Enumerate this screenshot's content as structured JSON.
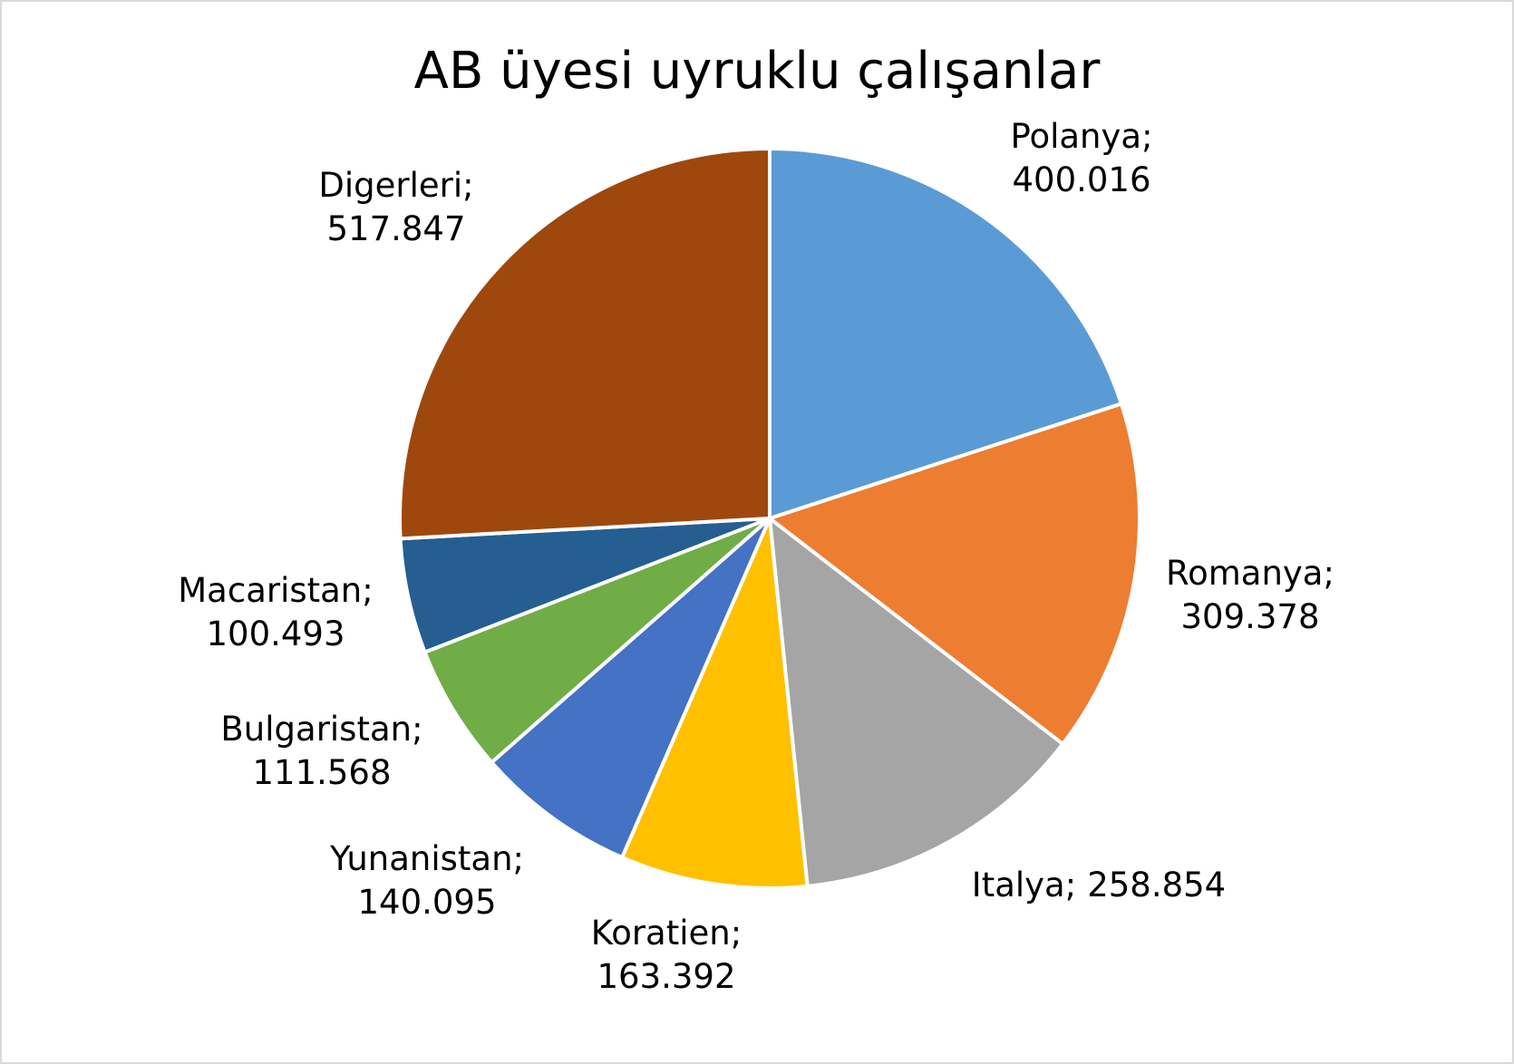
{
  "chart_data": {
    "type": "pie",
    "title": "AB üyesi uyruklu çalışanlar",
    "categories": [
      "Polanya",
      "Romanya",
      "Italya",
      "Koratien",
      "Yunanistan",
      "Bulgaristan",
      "Macaristan",
      "Digerleri"
    ],
    "values": [
      400016,
      309378,
      258854,
      163392,
      140095,
      111568,
      100493,
      517847
    ],
    "value_labels": [
      "400.016",
      "309.378",
      "258.854",
      "163.392",
      "140.095",
      "111.568",
      "100.493",
      "517.847"
    ],
    "label_separator": ";",
    "colors": [
      "#5b9bd5",
      "#ed7d31",
      "#a5a5a5",
      "#ffc000",
      "#4472c4",
      "#70ad47",
      "#255e91",
      "#9e480e"
    ]
  }
}
